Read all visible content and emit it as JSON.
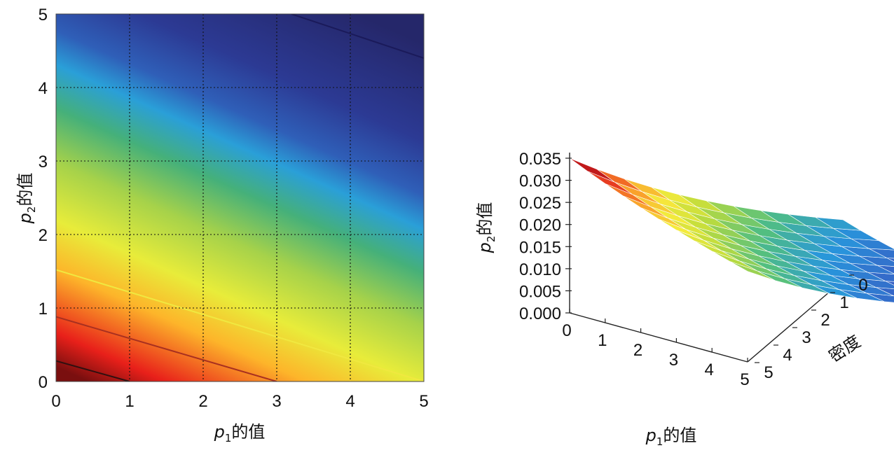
{
  "chart_data": [
    {
      "type": "heatmap",
      "x_range": [
        0,
        5
      ],
      "y_range": [
        0,
        5
      ],
      "x_ticks": [
        "0",
        "1",
        "2",
        "3",
        "4",
        "5"
      ],
      "y_ticks": [
        "0",
        "1",
        "2",
        "3",
        "4",
        "5"
      ],
      "xlabel": {
        "var": "p",
        "sub": "1",
        "suffix": "的值"
      },
      "ylabel": {
        "var": "p",
        "sub": "2",
        "suffix": "的值"
      },
      "colormap": "jet",
      "grid": true,
      "grid_style": "dotted",
      "contour_lines": [
        {
          "level": "high",
          "x0": 0,
          "y0": 0.28,
          "x1": 1.0,
          "y1": 0.0,
          "color": "#301010"
        },
        {
          "level": "mid",
          "x0": 0,
          "y0": 0.88,
          "x1": 3.0,
          "y1": 0.0,
          "color": "#a83020"
        },
        {
          "level": "low",
          "x0": 0,
          "y0": 1.52,
          "x1": 5.0,
          "y1": 0.0,
          "color": "#f0e840"
        },
        {
          "level": "min",
          "x0": 3.2,
          "y0": 5.0,
          "x1": 5.0,
          "y1": 4.4,
          "color": "#1a1a5a"
        }
      ]
    },
    {
      "type": "surface",
      "xlabel": {
        "var": "p",
        "sub": "1",
        "suffix": "的值"
      },
      "ylabel": {
        "var": "p",
        "sub": "2",
        "suffix": "的值"
      },
      "zlabel": "密度",
      "x_ticks": [
        "0",
        "1",
        "2",
        "3",
        "4",
        "5"
      ],
      "y_ticks": [
        "0",
        "1",
        "2",
        "3",
        "4",
        "5"
      ],
      "z_ticks": [
        "0.000",
        "0.005",
        "0.010",
        "0.015",
        "0.020",
        "0.025",
        "0.030",
        "0.035"
      ],
      "z_range": [
        0,
        0.035
      ],
      "grid_n": 10,
      "density_at_corners": {
        "p1_0_p2_0": 0.035,
        "p1_5_p2_0": 0.0205,
        "p1_0_p2_5": 0.013,
        "p1_5_p2_5": 0.0045
      },
      "colormap": "jet"
    }
  ]
}
